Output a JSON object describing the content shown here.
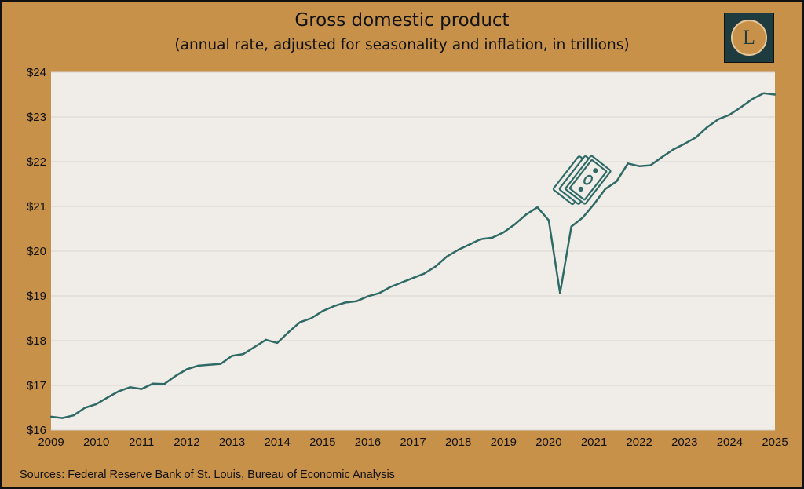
{
  "header": {
    "title": "Gross domestic product",
    "subtitle": "(annual rate, adjusted for seasonality and inflation, in trillions)"
  },
  "logo": {
    "letter": "L"
  },
  "footer": {
    "source": "Sources: Federal Reserve Bank of St. Louis, Bureau of Economic Analysis"
  },
  "icons": {
    "annotation": "money-bills-icon"
  },
  "colors": {
    "frame": "#c8914a",
    "plot_background": "#f0ede8",
    "line": "#2f6a66",
    "logo_background": "#1e3b3f"
  },
  "chart_data": {
    "type": "line",
    "title": "Gross domestic product",
    "subtitle": "(annual rate, adjusted for seasonality and inflation, in trillions)",
    "xlabel": "",
    "ylabel": "",
    "xlim": [
      2009,
      2025
    ],
    "ylim": [
      16,
      24
    ],
    "x_ticks": [
      2009,
      2010,
      2011,
      2012,
      2013,
      2014,
      2015,
      2016,
      2017,
      2018,
      2019,
      2020,
      2021,
      2022,
      2023,
      2024,
      2025
    ],
    "y_ticks": [
      16,
      17,
      18,
      19,
      20,
      21,
      22,
      23,
      24
    ],
    "y_tick_labels": [
      "$16",
      "$17",
      "$18",
      "$19",
      "$20",
      "$21",
      "$22",
      "$23",
      "$24"
    ],
    "grid": "horizontal",
    "legend": "none",
    "x": [
      2009.0,
      2009.25,
      2009.5,
      2009.75,
      2010.0,
      2010.25,
      2010.5,
      2010.75,
      2011.0,
      2011.25,
      2011.5,
      2011.75,
      2012.0,
      2012.25,
      2012.5,
      2012.75,
      2013.0,
      2013.25,
      2013.5,
      2013.75,
      2014.0,
      2014.25,
      2014.5,
      2014.75,
      2015.0,
      2015.25,
      2015.5,
      2015.75,
      2016.0,
      2016.25,
      2016.5,
      2016.75,
      2017.0,
      2017.25,
      2017.5,
      2017.75,
      2018.0,
      2018.25,
      2018.5,
      2018.75,
      2019.0,
      2019.25,
      2019.5,
      2019.75,
      2020.0,
      2020.25,
      2020.5,
      2020.75,
      2021.0,
      2021.25,
      2021.5,
      2021.75,
      2022.0,
      2022.25,
      2022.5,
      2022.75,
      2023.0,
      2023.25,
      2023.5,
      2023.75,
      2024.0,
      2024.25,
      2024.5,
      2024.75,
      2025.0
    ],
    "series": [
      {
        "values": [
          16.3,
          16.27,
          16.33,
          16.5,
          16.58,
          16.73,
          16.87,
          16.96,
          16.92,
          17.04,
          17.03,
          17.21,
          17.36,
          17.44,
          17.46,
          17.48,
          17.66,
          17.7,
          17.86,
          18.02,
          17.95,
          18.19,
          18.41,
          18.5,
          18.66,
          18.77,
          18.85,
          18.88,
          18.99,
          19.06,
          19.2,
          19.3,
          19.4,
          19.5,
          19.66,
          19.88,
          20.03,
          20.15,
          20.27,
          20.3,
          20.42,
          20.6,
          20.82,
          20.98,
          20.69,
          19.06,
          20.55,
          20.75,
          21.05,
          21.39,
          21.56,
          21.96,
          21.9,
          21.92,
          22.1,
          22.27,
          22.4,
          22.54,
          22.77,
          22.95,
          23.05,
          23.22,
          23.4,
          23.53,
          23.5
        ]
      }
    ]
  }
}
